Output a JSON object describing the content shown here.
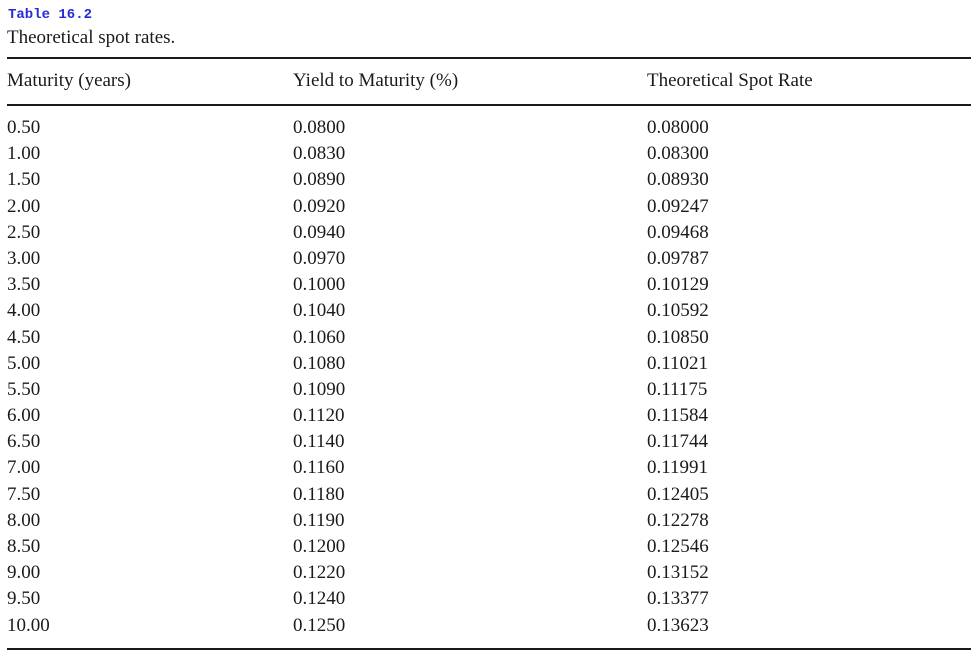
{
  "table": {
    "label": "Table 16.2",
    "caption": "Theoretical spot rates.",
    "headers": [
      "Maturity (years)",
      "Yield to Maturity (%)",
      "Theoretical Spot Rate"
    ],
    "rows": [
      [
        "0.50",
        "0.0800",
        "0.08000"
      ],
      [
        "1.00",
        "0.0830",
        "0.08300"
      ],
      [
        "1.50",
        "0.0890",
        "0.08930"
      ],
      [
        "2.00",
        "0.0920",
        "0.09247"
      ],
      [
        "2.50",
        "0.0940",
        "0.09468"
      ],
      [
        "3.00",
        "0.0970",
        "0.09787"
      ],
      [
        "3.50",
        "0.1000",
        "0.10129"
      ],
      [
        "4.00",
        "0.1040",
        "0.10592"
      ],
      [
        "4.50",
        "0.1060",
        "0.10850"
      ],
      [
        "5.00",
        "0.1080",
        "0.11021"
      ],
      [
        "5.50",
        "0.1090",
        "0.11175"
      ],
      [
        "6.00",
        "0.1120",
        "0.11584"
      ],
      [
        "6.50",
        "0.1140",
        "0.11744"
      ],
      [
        "7.00",
        "0.1160",
        "0.11991"
      ],
      [
        "7.50",
        "0.1180",
        "0.12405"
      ],
      [
        "8.00",
        "0.1190",
        "0.12278"
      ],
      [
        "8.50",
        "0.1200",
        "0.12546"
      ],
      [
        "9.00",
        "0.1220",
        "0.13152"
      ],
      [
        "9.50",
        "0.1240",
        "0.13377"
      ],
      [
        "10.00",
        "0.1250",
        "0.13623"
      ]
    ]
  }
}
